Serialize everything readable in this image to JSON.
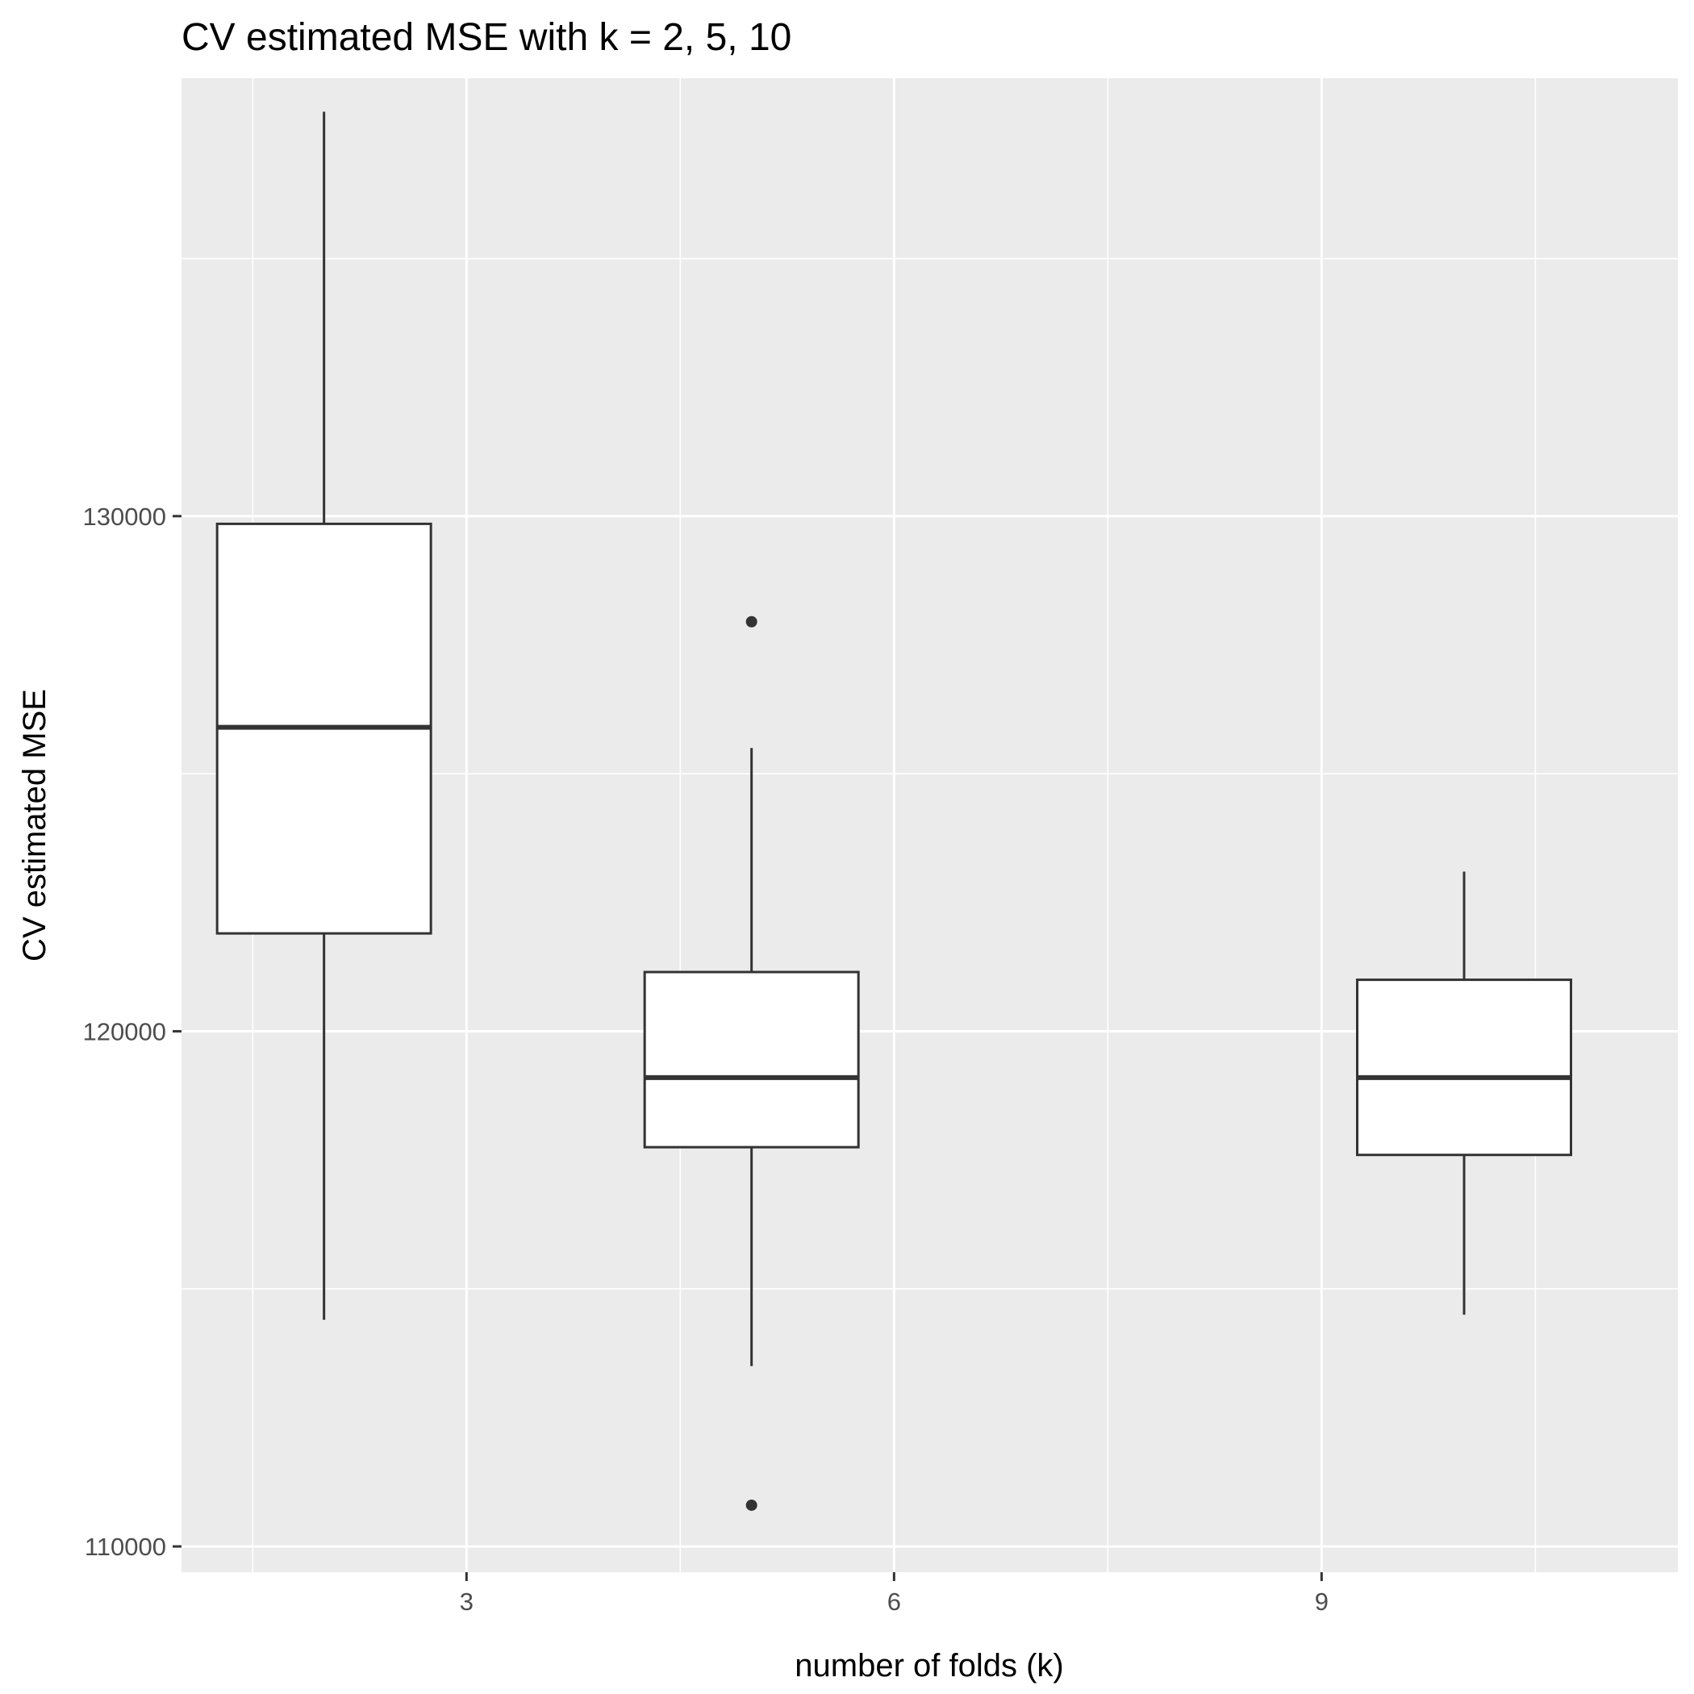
{
  "chart_data": {
    "type": "boxplot",
    "title": "CV estimated MSE with k = 2, 5, 10",
    "xlabel": "number of folds (k)",
    "ylabel": "CV estimated MSE",
    "xlim": [
      1.0,
      11.5
    ],
    "ylim": [
      109500,
      138500
    ],
    "x_ticks": [
      3,
      6,
      9
    ],
    "x_tick_labels": [
      "3",
      "6",
      "9"
    ],
    "y_ticks": [
      110000,
      120000,
      130000
    ],
    "y_tick_labels": [
      "110000",
      "120000",
      "130000"
    ],
    "x_minor_ticks": [
      1.5,
      4.5,
      7.5,
      10.5
    ],
    "y_minor_ticks": [
      115000,
      125000,
      135000
    ],
    "box_width": 1.5,
    "grid": true,
    "panel_background": "#ebebeb",
    "grid_color": "#ffffff",
    "box_fill": "#ffffff",
    "box_line_color": "#333333",
    "boxes": [
      {
        "x": 2,
        "whisker_low": 114400,
        "q1": 121900,
        "median": 125900,
        "q3": 129850,
        "whisker_high": 137850,
        "outliers": []
      },
      {
        "x": 5,
        "whisker_low": 113500,
        "q1": 117750,
        "median": 119100,
        "q3": 121150,
        "whisker_high": 125500,
        "outliers": [
          127950,
          110800
        ]
      },
      {
        "x": 10,
        "whisker_low": 114500,
        "q1": 117600,
        "median": 119100,
        "q3": 121000,
        "whisker_high": 123100,
        "outliers": []
      }
    ]
  }
}
